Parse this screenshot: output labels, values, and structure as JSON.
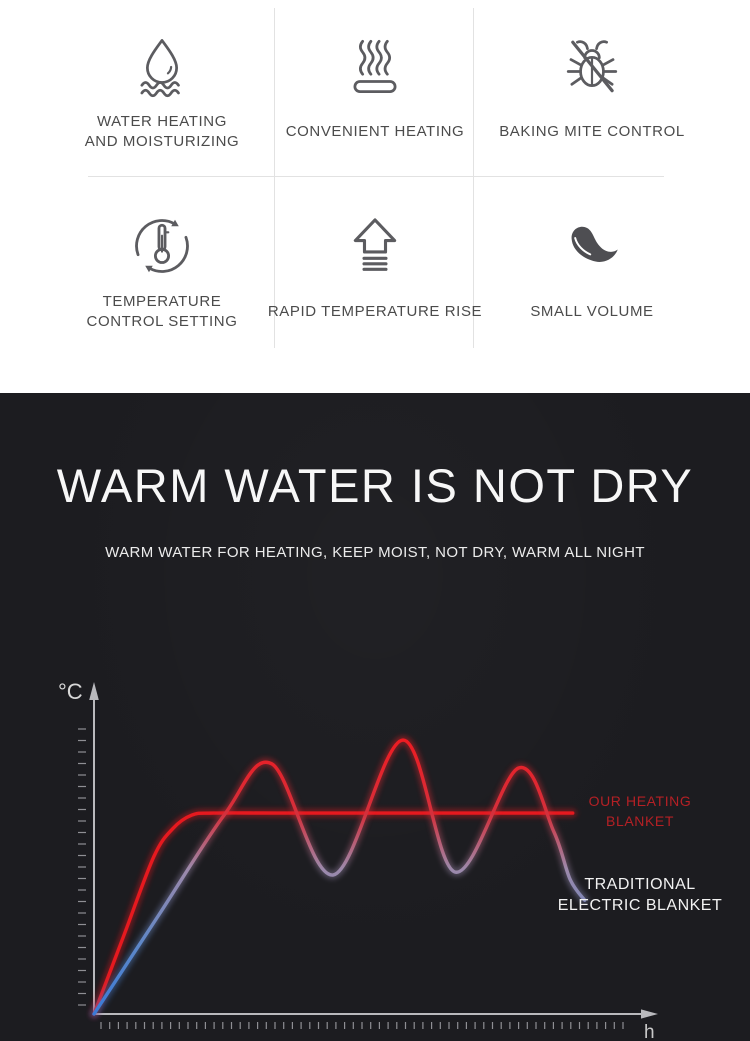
{
  "features": {
    "items": [
      {
        "icon": "water-drop",
        "label_lines": [
          "WATER HEATING",
          "AND MOISTURIZING"
        ]
      },
      {
        "icon": "heating-steam",
        "label_lines": [
          "CONVENIENT HEATING"
        ]
      },
      {
        "icon": "mite-control",
        "label_lines": [
          "BAKING MITE CONTROL"
        ]
      },
      {
        "icon": "temperature-cycle",
        "label_lines": [
          "TEMPERATURE",
          "CONTROL SETTING"
        ]
      },
      {
        "icon": "rapid-rise-arrow",
        "label_lines": [
          "RAPID TEMPERATURE RISE"
        ]
      },
      {
        "icon": "small-volume",
        "label_lines": [
          "SMALL VOLUME"
        ]
      }
    ]
  },
  "hero": {
    "title": "WARM WATER IS NOT DRY",
    "subtitle": "WARM WATER FOR HEATING, KEEP MOIST, NOT DRY, WARM ALL NIGHT"
  },
  "chart_data": {
    "type": "line",
    "xlabel": "h",
    "ylabel": "°C",
    "x_range": [
      0,
      10
    ],
    "y_range": [
      0,
      100
    ],
    "grid": false,
    "legend_position": "right-of-lines",
    "axis_color": "#b9b9bd",
    "tick_color": "#8f8f94",
    "series": [
      {
        "name": "OUR HEATING BLANKET",
        "label_lines": [
          "OUR HEATING",
          "BLANKET"
        ],
        "color": "#e6191f",
        "label_color": "#b42025",
        "points": [
          [
            0,
            0
          ],
          [
            0.55,
            28
          ],
          [
            1.1,
            56
          ],
          [
            1.45,
            66
          ],
          [
            1.8,
            70.8
          ],
          [
            2.2,
            71.5
          ],
          [
            3.5,
            71.5
          ],
          [
            6,
            71.5
          ],
          [
            8.8,
            71.5
          ]
        ]
      },
      {
        "name": "TRADITIONAL ELECTRIC BLANKET",
        "label_lines": [
          "TRADITIONAL",
          "ELECTRIC BLANKET"
        ],
        "label_color": "#f2f2f2",
        "gradient_stops": [
          [
            0,
            "#ee1c22"
          ],
          [
            0.27,
            "#d4303c"
          ],
          [
            0.47,
            "#9d89ab"
          ],
          [
            0.75,
            "#5d87c8"
          ],
          [
            1,
            "#3a7ad7"
          ]
        ],
        "points": [
          [
            0,
            0
          ],
          [
            1.2,
            35.5
          ],
          [
            2.4,
            71
          ],
          [
            3.27,
            89
          ],
          [
            4.4,
            49.5
          ],
          [
            5.68,
            97.5
          ],
          [
            6.64,
            50.5
          ],
          [
            7.8,
            87.5
          ],
          [
            8.45,
            65
          ],
          [
            8.75,
            48
          ],
          [
            9.02,
            40.5
          ]
        ]
      }
    ]
  }
}
